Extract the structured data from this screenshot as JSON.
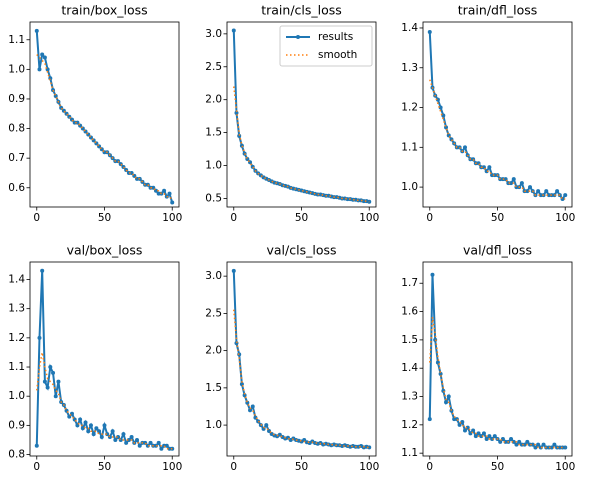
{
  "chart_data": [
    {
      "type": "line",
      "title": "train/box_loss",
      "x": [
        0,
        2,
        4,
        6,
        8,
        10,
        12,
        14,
        16,
        18,
        20,
        22,
        24,
        26,
        28,
        30,
        32,
        34,
        36,
        38,
        40,
        42,
        44,
        46,
        48,
        50,
        52,
        54,
        56,
        58,
        60,
        62,
        64,
        66,
        68,
        70,
        72,
        74,
        76,
        78,
        80,
        82,
        84,
        86,
        88,
        90,
        92,
        94,
        96,
        98,
        100
      ],
      "series": [
        {
          "color": "#1f77b4",
          "values": [
            1.13,
            1.0,
            1.05,
            1.04,
            1.0,
            0.97,
            0.93,
            0.91,
            0.89,
            0.87,
            0.86,
            0.85,
            0.84,
            0.83,
            0.82,
            0.82,
            0.81,
            0.8,
            0.79,
            0.78,
            0.77,
            0.76,
            0.75,
            0.74,
            0.73,
            0.72,
            0.72,
            0.71,
            0.7,
            0.69,
            0.69,
            0.68,
            0.67,
            0.66,
            0.65,
            0.65,
            0.64,
            0.63,
            0.63,
            0.62,
            0.61,
            0.61,
            0.6,
            0.6,
            0.59,
            0.58,
            0.58,
            0.59,
            0.57,
            0.58,
            0.55
          ]
        },
        {
          "color": "#ff7f0e",
          "values": [
            1.05,
            1.04,
            1.03,
            1.02,
            0.99,
            0.96,
            0.93,
            0.91,
            0.89,
            0.87,
            0.86,
            0.85,
            0.84,
            0.83,
            0.82,
            0.82,
            0.81,
            0.8,
            0.79,
            0.78,
            0.77,
            0.76,
            0.75,
            0.74,
            0.73,
            0.72,
            0.72,
            0.71,
            0.7,
            0.69,
            0.69,
            0.68,
            0.67,
            0.66,
            0.65,
            0.65,
            0.64,
            0.63,
            0.63,
            0.62,
            0.61,
            0.61,
            0.6,
            0.6,
            0.59,
            0.59,
            0.58,
            0.58,
            0.57,
            0.57,
            0.56
          ]
        }
      ],
      "xlim": [
        -5,
        105
      ],
      "ylim": [
        0.535,
        1.16
      ],
      "xticks": [
        0,
        50,
        100
      ],
      "yticks": [
        0.6,
        0.7,
        0.8,
        0.9,
        {
          "value": 1,
          "label": "1.0"
        },
        1.1
      ]
    },
    {
      "type": "line",
      "title": "train/cls_loss",
      "x": [
        0,
        2,
        4,
        6,
        8,
        10,
        12,
        14,
        16,
        18,
        20,
        22,
        24,
        26,
        28,
        30,
        32,
        34,
        36,
        38,
        40,
        42,
        44,
        46,
        48,
        50,
        52,
        54,
        56,
        58,
        60,
        62,
        64,
        66,
        68,
        70,
        72,
        74,
        76,
        78,
        80,
        82,
        84,
        86,
        88,
        90,
        92,
        94,
        96,
        98,
        100
      ],
      "series": [
        {
          "name": "results",
          "color": "#1f77b4",
          "values": [
            3.05,
            1.8,
            1.45,
            1.3,
            1.18,
            1.1,
            1.05,
            0.98,
            0.92,
            0.88,
            0.85,
            0.82,
            0.8,
            0.78,
            0.76,
            0.74,
            0.73,
            0.72,
            0.7,
            0.69,
            0.68,
            0.66,
            0.65,
            0.64,
            0.63,
            0.62,
            0.61,
            0.6,
            0.59,
            0.58,
            0.57,
            0.56,
            0.56,
            0.55,
            0.54,
            0.54,
            0.53,
            0.52,
            0.52,
            0.51,
            0.5,
            0.5,
            0.49,
            0.49,
            0.48,
            0.48,
            0.47,
            0.47,
            0.46,
            0.46,
            0.45
          ]
        },
        {
          "name": "smooth",
          "color": "#ff7f0e",
          "values": [
            2.2,
            1.85,
            1.48,
            1.31,
            1.19,
            1.1,
            1.04,
            0.98,
            0.92,
            0.88,
            0.85,
            0.82,
            0.8,
            0.78,
            0.76,
            0.74,
            0.73,
            0.72,
            0.7,
            0.69,
            0.68,
            0.66,
            0.65,
            0.64,
            0.63,
            0.62,
            0.61,
            0.6,
            0.59,
            0.58,
            0.57,
            0.56,
            0.56,
            0.55,
            0.54,
            0.54,
            0.53,
            0.52,
            0.52,
            0.51,
            0.5,
            0.5,
            0.49,
            0.49,
            0.48,
            0.48,
            0.47,
            0.47,
            0.46,
            0.46,
            0.45
          ]
        }
      ],
      "legend": "upper right",
      "xlim": [
        -5,
        105
      ],
      "ylim": [
        0.37,
        3.18
      ],
      "xticks": [
        0,
        50,
        100
      ],
      "yticks": [
        0.5,
        {
          "value": 1,
          "label": "1.0"
        },
        1.5,
        {
          "value": 2,
          "label": "2.0"
        },
        2.5,
        {
          "value": 3,
          "label": "3.0"
        }
      ]
    },
    {
      "type": "line",
      "title": "train/dfl_loss",
      "x": [
        0,
        2,
        4,
        6,
        8,
        10,
        12,
        14,
        16,
        18,
        20,
        22,
        24,
        26,
        28,
        30,
        32,
        34,
        36,
        38,
        40,
        42,
        44,
        46,
        48,
        50,
        52,
        54,
        56,
        58,
        60,
        62,
        64,
        66,
        68,
        70,
        72,
        74,
        76,
        78,
        80,
        82,
        84,
        86,
        88,
        90,
        92,
        94,
        96,
        98,
        100
      ],
      "series": [
        {
          "color": "#1f77b4",
          "values": [
            1.39,
            1.25,
            1.23,
            1.22,
            1.2,
            1.18,
            1.15,
            1.13,
            1.12,
            1.11,
            1.1,
            1.1,
            1.09,
            1.1,
            1.08,
            1.07,
            1.07,
            1.06,
            1.06,
            1.05,
            1.05,
            1.04,
            1.05,
            1.03,
            1.03,
            1.03,
            1.02,
            1.02,
            1.02,
            1.01,
            1.01,
            1.02,
            1.0,
            1.0,
            1.01,
            0.99,
            0.99,
            1.0,
            0.99,
            0.98,
            0.99,
            0.98,
            0.98,
            0.99,
            0.98,
            0.98,
            0.98,
            0.99,
            0.98,
            0.97,
            0.98
          ]
        },
        {
          "color": "#ff7f0e",
          "values": [
            1.27,
            1.25,
            1.23,
            1.21,
            1.19,
            1.17,
            1.15,
            1.13,
            1.12,
            1.11,
            1.1,
            1.1,
            1.09,
            1.09,
            1.08,
            1.07,
            1.07,
            1.06,
            1.06,
            1.05,
            1.05,
            1.04,
            1.04,
            1.03,
            1.03,
            1.03,
            1.02,
            1.02,
            1.02,
            1.01,
            1.01,
            1.01,
            1.0,
            1.0,
            1.0,
            0.99,
            0.99,
            0.99,
            0.99,
            0.98,
            0.98,
            0.98,
            0.98,
            0.98,
            0.98,
            0.98,
            0.98,
            0.98,
            0.98,
            0.97,
            0.97
          ]
        }
      ],
      "xlim": [
        -5,
        105
      ],
      "ylim": [
        0.95,
        1.415
      ],
      "xticks": [
        0,
        50,
        100
      ],
      "yticks": [
        {
          "value": 1,
          "label": "1.0"
        },
        1.1,
        1.2,
        1.3,
        1.4
      ]
    },
    {
      "type": "line",
      "title": "val/box_loss",
      "x": [
        0,
        2,
        4,
        6,
        8,
        10,
        12,
        14,
        16,
        18,
        20,
        22,
        24,
        26,
        28,
        30,
        32,
        34,
        36,
        38,
        40,
        42,
        44,
        46,
        48,
        50,
        52,
        54,
        56,
        58,
        60,
        62,
        64,
        66,
        68,
        70,
        72,
        74,
        76,
        78,
        80,
        82,
        84,
        86,
        88,
        90,
        92,
        94,
        96,
        98,
        100
      ],
      "series": [
        {
          "color": "#1f77b4",
          "values": [
            0.83,
            1.2,
            1.43,
            1.05,
            1.03,
            1.1,
            1.08,
            1.0,
            1.05,
            0.98,
            0.97,
            0.95,
            0.93,
            0.94,
            0.92,
            0.9,
            0.92,
            0.89,
            0.91,
            0.88,
            0.9,
            0.87,
            0.89,
            0.88,
            0.86,
            0.9,
            0.87,
            0.86,
            0.88,
            0.85,
            0.86,
            0.85,
            0.87,
            0.84,
            0.85,
            0.86,
            0.84,
            0.85,
            0.83,
            0.84,
            0.84,
            0.83,
            0.84,
            0.83,
            0.83,
            0.84,
            0.82,
            0.83,
            0.83,
            0.82,
            0.82
          ]
        },
        {
          "color": "#ff7f0e",
          "values": [
            1.02,
            1.1,
            1.15,
            1.1,
            1.06,
            1.05,
            1.04,
            1.02,
            1.01,
            0.98,
            0.97,
            0.95,
            0.94,
            0.93,
            0.92,
            0.91,
            0.9,
            0.9,
            0.89,
            0.89,
            0.88,
            0.88,
            0.88,
            0.87,
            0.87,
            0.87,
            0.87,
            0.86,
            0.86,
            0.86,
            0.86,
            0.85,
            0.85,
            0.85,
            0.85,
            0.85,
            0.84,
            0.84,
            0.84,
            0.84,
            0.84,
            0.83,
            0.83,
            0.83,
            0.83,
            0.83,
            0.83,
            0.83,
            0.82,
            0.82,
            0.82
          ]
        }
      ],
      "xlim": [
        -5,
        105
      ],
      "ylim": [
        0.795,
        1.46
      ],
      "xticks": [
        0,
        50,
        100
      ],
      "yticks": [
        0.8,
        0.9,
        {
          "value": 1,
          "label": "1.0"
        },
        1.1,
        1.2,
        1.3,
        1.4
      ]
    },
    {
      "type": "line",
      "title": "val/cls_loss",
      "x": [
        0,
        2,
        4,
        6,
        8,
        10,
        12,
        14,
        16,
        18,
        20,
        22,
        24,
        26,
        28,
        30,
        32,
        34,
        36,
        38,
        40,
        42,
        44,
        46,
        48,
        50,
        52,
        54,
        56,
        58,
        60,
        62,
        64,
        66,
        68,
        70,
        72,
        74,
        76,
        78,
        80,
        82,
        84,
        86,
        88,
        90,
        92,
        94,
        96,
        98,
        100
      ],
      "series": [
        {
          "color": "#1f77b4",
          "values": [
            3.07,
            2.1,
            1.95,
            1.55,
            1.4,
            1.3,
            1.2,
            1.25,
            1.1,
            1.05,
            1.0,
            0.95,
            1.0,
            0.92,
            0.88,
            0.86,
            0.85,
            0.87,
            0.84,
            0.82,
            0.83,
            0.8,
            0.82,
            0.8,
            0.79,
            0.78,
            0.8,
            0.77,
            0.76,
            0.78,
            0.76,
            0.75,
            0.76,
            0.74,
            0.75,
            0.74,
            0.73,
            0.74,
            0.73,
            0.73,
            0.72,
            0.73,
            0.72,
            0.71,
            0.72,
            0.71,
            0.71,
            0.72,
            0.7,
            0.71,
            0.7
          ]
        },
        {
          "color": "#ff7f0e",
          "values": [
            2.55,
            2.15,
            1.9,
            1.58,
            1.42,
            1.3,
            1.23,
            1.2,
            1.12,
            1.06,
            1.01,
            0.97,
            0.96,
            0.93,
            0.89,
            0.87,
            0.86,
            0.86,
            0.84,
            0.83,
            0.82,
            0.81,
            0.81,
            0.8,
            0.79,
            0.79,
            0.78,
            0.77,
            0.77,
            0.77,
            0.76,
            0.76,
            0.75,
            0.75,
            0.75,
            0.74,
            0.74,
            0.73,
            0.73,
            0.73,
            0.72,
            0.72,
            0.72,
            0.72,
            0.71,
            0.71,
            0.71,
            0.71,
            0.71,
            0.7,
            0.7
          ]
        }
      ],
      "xlim": [
        -5,
        105
      ],
      "ylim": [
        0.585,
        3.19
      ],
      "xticks": [
        0,
        50,
        100
      ],
      "yticks": [
        {
          "value": 1,
          "label": "1.0"
        },
        1.5,
        {
          "value": 2,
          "label": "2.0"
        },
        2.5,
        {
          "value": 3,
          "label": "3.0"
        }
      ]
    },
    {
      "type": "line",
      "title": "val/dfl_loss",
      "x": [
        0,
        2,
        4,
        6,
        8,
        10,
        12,
        14,
        16,
        18,
        20,
        22,
        24,
        26,
        28,
        30,
        32,
        34,
        36,
        38,
        40,
        42,
        44,
        46,
        48,
        50,
        52,
        54,
        56,
        58,
        60,
        62,
        64,
        66,
        68,
        70,
        72,
        74,
        76,
        78,
        80,
        82,
        84,
        86,
        88,
        90,
        92,
        94,
        96,
        98,
        100
      ],
      "series": [
        {
          "color": "#1f77b4",
          "values": [
            1.22,
            1.73,
            1.5,
            1.42,
            1.38,
            1.32,
            1.28,
            1.3,
            1.25,
            1.22,
            1.22,
            1.2,
            1.21,
            1.18,
            1.19,
            1.17,
            1.18,
            1.16,
            1.17,
            1.16,
            1.17,
            1.15,
            1.16,
            1.15,
            1.16,
            1.15,
            1.14,
            1.15,
            1.14,
            1.14,
            1.15,
            1.14,
            1.13,
            1.14,
            1.13,
            1.13,
            1.14,
            1.13,
            1.13,
            1.12,
            1.13,
            1.12,
            1.13,
            1.12,
            1.12,
            1.12,
            1.13,
            1.12,
            1.12,
            1.12,
            1.12
          ]
        },
        {
          "color": "#ff7f0e",
          "values": [
            1.42,
            1.58,
            1.52,
            1.44,
            1.38,
            1.33,
            1.29,
            1.28,
            1.25,
            1.23,
            1.22,
            1.21,
            1.2,
            1.19,
            1.19,
            1.18,
            1.17,
            1.17,
            1.16,
            1.16,
            1.16,
            1.16,
            1.15,
            1.15,
            1.15,
            1.15,
            1.15,
            1.14,
            1.14,
            1.14,
            1.14,
            1.14,
            1.14,
            1.13,
            1.13,
            1.13,
            1.13,
            1.13,
            1.13,
            1.13,
            1.12,
            1.12,
            1.12,
            1.12,
            1.12,
            1.12,
            1.12,
            1.12,
            1.12,
            1.12,
            1.12
          ]
        }
      ],
      "xlim": [
        -5,
        105
      ],
      "ylim": [
        1.09,
        1.775
      ],
      "xticks": [
        0,
        50,
        100
      ],
      "yticks": [
        1.1,
        1.2,
        1.3,
        1.4,
        1.5,
        1.6,
        1.7
      ]
    }
  ]
}
